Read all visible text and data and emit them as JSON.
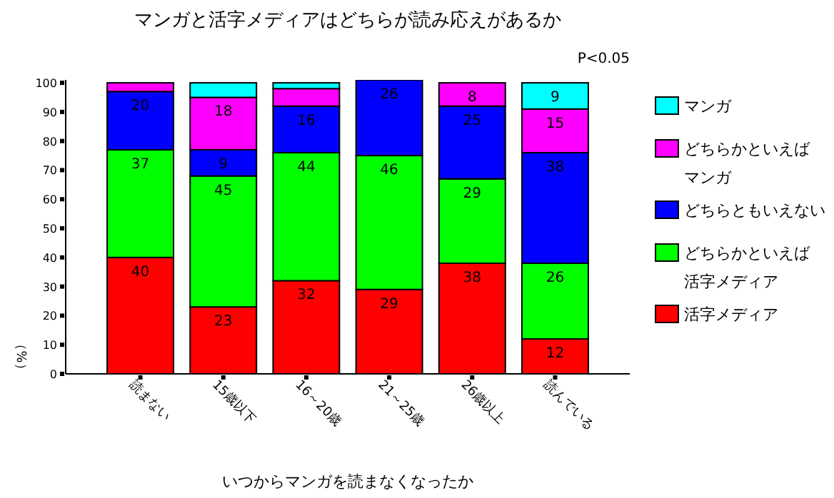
{
  "chart_data": {
    "type": "bar",
    "stacked": true,
    "title": "マンガと活字メディアはどちらが読み応えがあるか",
    "xlabel": "いつからマンガを読まなくなったか",
    "ylabel": "（%）",
    "annotations": [
      "P<0.05"
    ],
    "categories": [
      "読まない",
      "15歳以下",
      "16～20歳",
      "21～25歳",
      "26歳以上",
      "読んでいる"
    ],
    "series": [
      {
        "name": "活字メディア",
        "color": "#ff0000",
        "values": [
          40,
          23,
          32,
          29,
          38,
          12
        ],
        "value_labels": [
          "40",
          "23",
          "32",
          "29",
          "38",
          "12"
        ]
      },
      {
        "name": "どちらかといえば活字メディア",
        "color": "#00ff00",
        "values": [
          37,
          45,
          44,
          46,
          29,
          26
        ],
        "value_labels": [
          "37",
          "45",
          "44",
          "46",
          "29",
          "26"
        ]
      },
      {
        "name": "どちらともいえない",
        "color": "#0000ff",
        "values": [
          20,
          9,
          16,
          26,
          25,
          38
        ],
        "value_labels": [
          "20",
          "9",
          "16",
          "26",
          "25",
          "38"
        ]
      },
      {
        "name": "どちらかといえばマンガ",
        "color": "#ff00ff",
        "values": [
          3,
          18,
          6,
          0,
          8,
          15
        ],
        "value_labels": [
          null,
          "18",
          null,
          null,
          "8",
          "15"
        ]
      },
      {
        "name": "マンガ",
        "color": "#00ffff",
        "values": [
          0,
          5,
          2,
          0,
          0,
          9
        ],
        "value_labels": [
          null,
          null,
          null,
          null,
          null,
          "9"
        ]
      }
    ],
    "ylim": [
      0,
      101
    ],
    "yticks": [
      0,
      10,
      20,
      30,
      40,
      50,
      60,
      70,
      80,
      90,
      100
    ],
    "grid": false,
    "legend": "right"
  }
}
